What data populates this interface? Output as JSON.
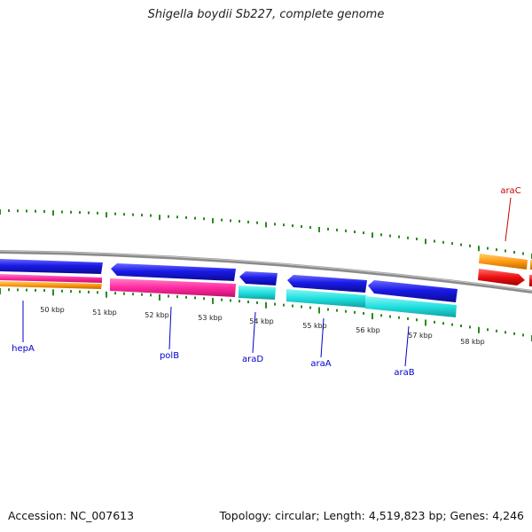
{
  "title": "Shigella boydii Sb227, complete genome",
  "footer": {
    "accession": "Accession: NC_007613",
    "summary": "Topology: circular; Length: 4,519,823 bp; Genes: 4,246"
  },
  "kbp_labels": [
    "50 kbp",
    "51 kbp",
    "52 kbp",
    "53 kbp",
    "54 kbp",
    "55 kbp",
    "56 kbp",
    "57 kbp",
    "58 kbp"
  ],
  "gene_labels": {
    "hepA": "hepA",
    "polB": "polB",
    "araD": "araD",
    "araA": "araA",
    "araB": "araB",
    "araC": "araC"
  },
  "colors": {
    "backbone": "#8a8a8a",
    "tick": "#2a8a1e",
    "blue_cds": "#1a1ae0",
    "pink": "#ff2aa0",
    "cyan": "#22e0e0",
    "orange": "#ff9a10",
    "red": "#ee1010",
    "label_blue": "#0000cc",
    "label_red": "#cc0000"
  }
}
